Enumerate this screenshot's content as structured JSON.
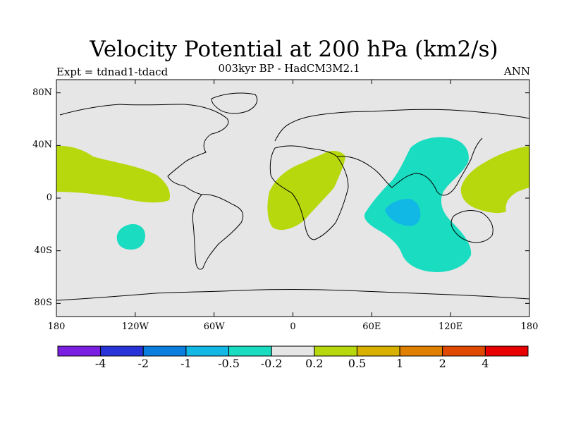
{
  "title": "Velocity Potential at 200 hPa (km2/s)",
  "subtitle": "003kyr BP - HadCM3M2.1",
  "left_label": "Expt = tdnad1-tdacd",
  "right_label": "ANN",
  "map": {
    "ocean_land_color": "#e6e6e6",
    "coastline_color": "#000000",
    "lon_range": [
      -180,
      180
    ],
    "lat_range": [
      -90,
      90
    ],
    "lat_ticks": [
      "80N",
      "40N",
      "0",
      "40S",
      "80S"
    ],
    "lon_ticks": [
      "180",
      "120W",
      "60W",
      "0",
      "60E",
      "120E",
      "180"
    ]
  },
  "colorbar": {
    "colors": [
      "#7b1fe0",
      "#2834d8",
      "#0a7fe0",
      "#11b8e6",
      "#1adcc0",
      "#e6e6e6",
      "#b8d80e",
      "#d8b000",
      "#e08000",
      "#e04a00",
      "#e80000"
    ],
    "labels": [
      "-4",
      "-2",
      "-1",
      "-0.5",
      "-0.2",
      "0.2",
      "0.5",
      "1",
      "2",
      "4"
    ]
  },
  "contour_regions": [
    {
      "name": "east-pacific-positive",
      "level": "0.2 to 0.5",
      "color": "#b8d80e"
    },
    {
      "name": "africa-atlantic-positive",
      "level": "0.2 to 0.5",
      "color": "#b8d80e"
    },
    {
      "name": "west-pacific-positive",
      "level": "0.2 to 0.5",
      "color": "#b8d80e"
    },
    {
      "name": "south-pacific-negative",
      "level": "-0.5 to -0.2",
      "color": "#1adcc0"
    },
    {
      "name": "indian-ocean-negative",
      "level": "-0.5 to -0.2",
      "color": "#1adcc0"
    },
    {
      "name": "indian-ocean-core-negative",
      "level": "-1 to -0.5",
      "color": "#11b8e6"
    }
  ]
}
